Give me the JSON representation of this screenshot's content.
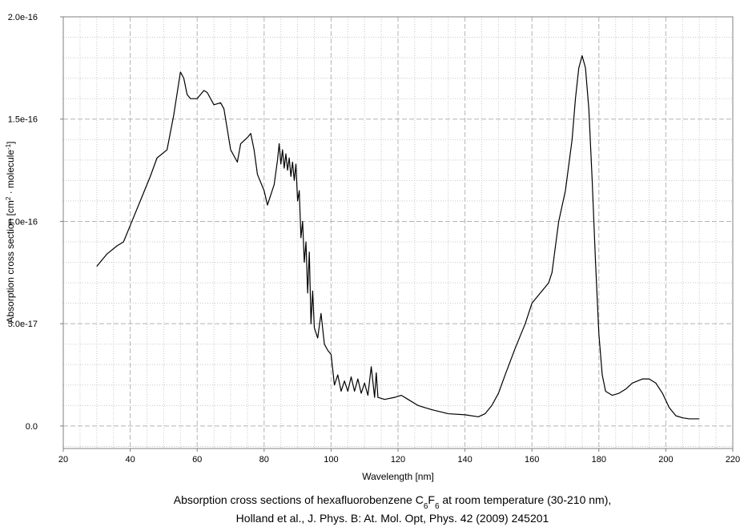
{
  "chart_data": {
    "type": "line",
    "xlabel": "Wavelength [nm]",
    "ylabel": [
      "Absorption cross section [cm",
      "2",
      " · molecule",
      "-1",
      "]"
    ],
    "caption": {
      "line1": [
        "Absorption cross sections of hexafluorobenzene C",
        "6",
        "F",
        "6",
        " at room temperature (30-210 nm),"
      ],
      "line2": "Holland et al., J. Phys. B: At. Mol. Opt, Phys. 42 (2009) 245201"
    },
    "xlim": [
      20,
      220
    ],
    "ylim": [
      -1.1e-17,
      2e-16
    ],
    "xticks": [
      20,
      40,
      60,
      80,
      100,
      120,
      140,
      160,
      180,
      200,
      220
    ],
    "yticks": [
      {
        "value": 0,
        "label": "0.0"
      },
      {
        "value": 5e-17,
        "label": "5.0e-17"
      },
      {
        "value": 1e-16,
        "label": "1.0e-16"
      },
      {
        "value": 1.5e-16,
        "label": "1.5e-16"
      },
      {
        "value": 2e-16,
        "label": "2.0e-16"
      }
    ],
    "xminorticks": [
      25,
      30,
      35,
      45,
      50,
      55,
      65,
      70,
      75,
      85,
      90,
      95,
      105,
      110,
      115,
      125,
      130,
      135,
      145,
      150,
      155,
      165,
      170,
      175,
      185,
      190,
      195,
      205,
      210,
      215
    ],
    "yminorticks": [
      -1e-17,
      1e-17,
      2e-17,
      3e-17,
      4e-17,
      6e-17,
      7e-17,
      8e-17,
      9e-17,
      1.1e-16,
      1.2e-16,
      1.3e-16,
      1.4e-16,
      1.6e-16,
      1.7e-16,
      1.8e-16,
      1.9e-16
    ],
    "grid": true,
    "series": [
      {
        "color": "#000000",
        "x": [
          30,
          33,
          36,
          38,
          40,
          43,
          46,
          48,
          51,
          53,
          55,
          56,
          57,
          58,
          60,
          62,
          63,
          65,
          67,
          68,
          70,
          72,
          73,
          75,
          76,
          77,
          78,
          80,
          81,
          83,
          84,
          84.5,
          85,
          85.5,
          86,
          86.5,
          87,
          87.5,
          88,
          88.5,
          89,
          89.5,
          90,
          90.5,
          91,
          91.5,
          92,
          92.5,
          93,
          93.5,
          94,
          94.5,
          95,
          96,
          97,
          98,
          99,
          100,
          101,
          102,
          103,
          104,
          105,
          106,
          107,
          108,
          109,
          110,
          111,
          112,
          113,
          113.5,
          114,
          116,
          119,
          121,
          123,
          126,
          130,
          135,
          140,
          144,
          146,
          148,
          150,
          152,
          155,
          158,
          160,
          162,
          165,
          166,
          168,
          170,
          172,
          173,
          174,
          175,
          176,
          177,
          178,
          179,
          180,
          181,
          182,
          184,
          186,
          188,
          190,
          193,
          195,
          197,
          199,
          201,
          203,
          205,
          207,
          210
        ],
        "values": [
          7.8e-17,
          8.4e-17,
          8.8e-17,
          9e-17,
          9.8e-17,
          1.1e-16,
          1.22e-16,
          1.31e-16,
          1.35e-16,
          1.52e-16,
          1.73e-16,
          1.7e-16,
          1.62e-16,
          1.6e-16,
          1.6e-16,
          1.64e-16,
          1.63e-16,
          1.57e-16,
          1.58e-16,
          1.55e-16,
          1.35e-16,
          1.29e-16,
          1.38e-16,
          1.41e-16,
          1.43e-16,
          1.35e-16,
          1.23e-16,
          1.15e-16,
          1.08e-16,
          1.18e-16,
          1.3e-16,
          1.38e-16,
          1.28e-16,
          1.35e-16,
          1.26e-16,
          1.33e-16,
          1.25e-16,
          1.31e-16,
          1.22e-16,
          1.29e-16,
          1.2e-16,
          1.28e-16,
          1.1e-16,
          1.15e-16,
          9.2e-17,
          1e-16,
          8e-17,
          9e-17,
          6.5e-17,
          8.5e-17,
          5e-17,
          6.6e-17,
          4.8e-17,
          4.3e-17,
          5.5e-17,
          4e-17,
          3.7e-17,
          3.5e-17,
          2e-17,
          2.5e-17,
          1.7e-17,
          2.2e-17,
          1.7e-17,
          2.4e-17,
          1.7e-17,
          2.3e-17,
          1.6e-17,
          2.1e-17,
          1.5e-17,
          2.9e-17,
          1.4e-17,
          2.6e-17,
          1.4e-17,
          1.3e-17,
          1.4e-17,
          1.5e-17,
          1.3e-17,
          1e-17,
          8e-18,
          6e-18,
          5.5e-18,
          4.5e-18,
          6e-18,
          1e-17,
          1.6e-17,
          2.5e-17,
          3.8e-17,
          5e-17,
          6e-17,
          6.4e-17,
          7e-17,
          7.5e-17,
          1e-16,
          1.15e-16,
          1.4e-16,
          1.6e-16,
          1.75e-16,
          1.81e-16,
          1.75e-16,
          1.55e-16,
          1.2e-16,
          8e-17,
          4.5e-17,
          2.5e-17,
          1.7e-17,
          1.5e-17,
          1.6e-17,
          1.8e-17,
          2.1e-17,
          2.3e-17,
          2.3e-17,
          2.1e-17,
          1.6e-17,
          9e-18,
          5e-18,
          4e-18,
          3.5e-18,
          3.5e-18
        ]
      }
    ]
  }
}
